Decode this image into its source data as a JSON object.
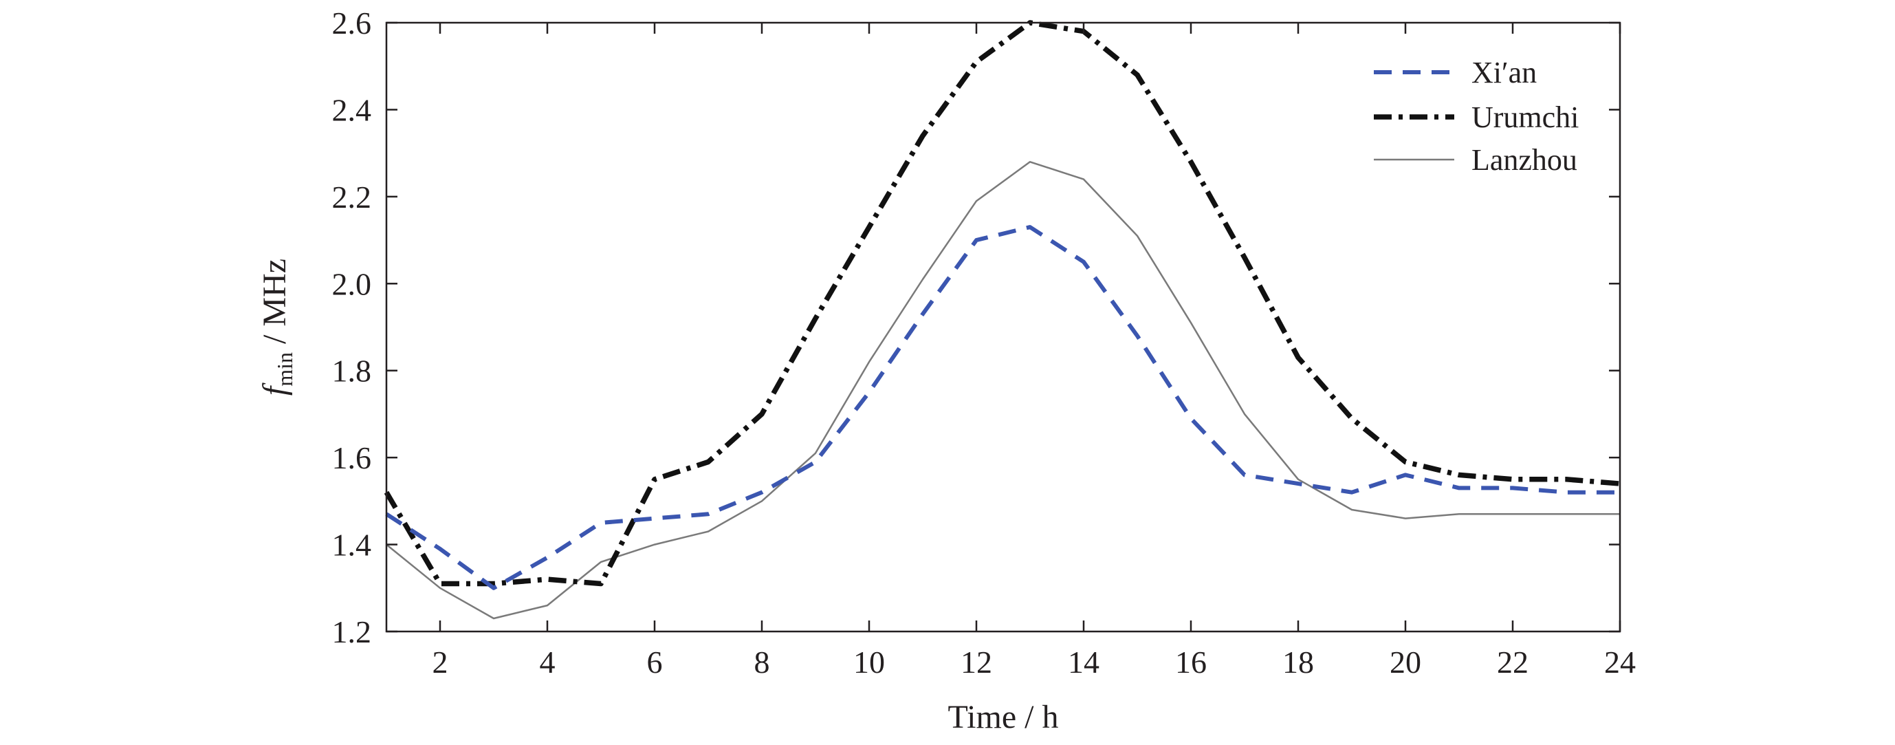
{
  "chart_data": {
    "type": "line",
    "title": "",
    "xlabel": "Time / h",
    "ylabel": {
      "main": "f",
      "subscript": "min",
      "unit": " / MHz"
    },
    "xlim": [
      1,
      24
    ],
    "ylim": [
      1.2,
      2.6
    ],
    "xticks": [
      2,
      4,
      6,
      8,
      10,
      12,
      14,
      16,
      18,
      20,
      22,
      24
    ],
    "yticks": [
      1.2,
      1.4,
      1.6,
      1.8,
      2.0,
      2.2,
      2.4,
      2.6
    ],
    "ytick_labels": [
      "1.2",
      "1.4",
      "1.6",
      "1.8",
      "2.0",
      "2.2",
      "2.4",
      "2.6"
    ],
    "grid": false,
    "legend_position": "top-right",
    "x": [
      1,
      2,
      3,
      4,
      5,
      6,
      7,
      8,
      9,
      10,
      11,
      12,
      13,
      14,
      15,
      16,
      17,
      18,
      19,
      20,
      21,
      22,
      23,
      24
    ],
    "series": [
      {
        "name": "Xi′an",
        "style": "dashed",
        "color": "#3b56b0",
        "values": [
          1.47,
          1.39,
          1.3,
          1.37,
          1.45,
          1.46,
          1.47,
          1.52,
          1.59,
          1.75,
          1.93,
          2.1,
          2.13,
          2.05,
          1.88,
          1.69,
          1.56,
          1.54,
          1.52,
          1.56,
          1.53,
          1.53,
          1.52,
          1.52
        ]
      },
      {
        "name": "Urumchi",
        "style": "dash-dot",
        "color": "#111111",
        "values": [
          1.52,
          1.31,
          1.31,
          1.32,
          1.31,
          1.55,
          1.59,
          1.7,
          1.92,
          2.13,
          2.34,
          2.51,
          2.6,
          2.58,
          2.48,
          2.28,
          2.06,
          1.83,
          1.69,
          1.59,
          1.56,
          1.55,
          1.55,
          1.54
        ]
      },
      {
        "name": "Lanzhou",
        "style": "solid",
        "color": "#7a7a7a",
        "values": [
          1.4,
          1.3,
          1.23,
          1.26,
          1.36,
          1.4,
          1.43,
          1.5,
          1.61,
          1.82,
          2.01,
          2.19,
          2.28,
          2.24,
          2.11,
          1.91,
          1.7,
          1.55,
          1.48,
          1.46,
          1.47,
          1.47,
          1.47,
          1.47
        ]
      }
    ]
  }
}
